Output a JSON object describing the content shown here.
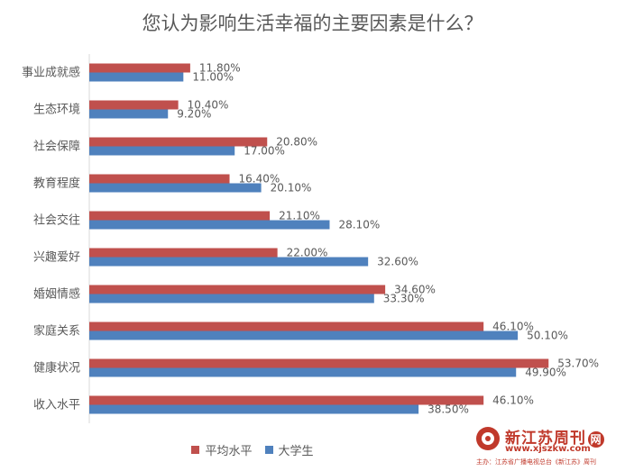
{
  "chart_data": {
    "type": "bar",
    "orientation": "horizontal",
    "title": "您认为影响生活幸福的主要因素是什么？",
    "categories": [
      "事业成就感",
      "生态环境",
      "社会保障",
      "教育程度",
      "社会交往",
      "兴趣爱好",
      "婚姻情感",
      "家庭关系",
      "健康状况",
      "收入水平"
    ],
    "series": [
      {
        "name": "平均水平",
        "color": "#c0504d",
        "values": [
          11.8,
          10.4,
          20.8,
          16.4,
          21.1,
          22.0,
          34.6,
          46.1,
          53.7,
          46.1
        ],
        "labels": [
          "11.80%",
          "10.40%",
          "20.80%",
          "16.40%",
          "21.10%",
          "22.00%",
          "34.60%",
          "46.10%",
          "53.70%",
          "46.10%"
        ]
      },
      {
        "name": "大学生",
        "color": "#4f81bd",
        "values": [
          11.0,
          9.2,
          17.0,
          20.1,
          28.1,
          32.6,
          33.3,
          50.1,
          49.9,
          38.5
        ],
        "labels": [
          "11.00%",
          "9.20%",
          "17.00%",
          "20.10%",
          "28.10%",
          "32.60%",
          "33.30%",
          "50.10%",
          "49.90%",
          "38.50%"
        ]
      }
    ],
    "xlim": [
      0,
      60
    ],
    "grid": false,
    "legend_position": "bottom"
  },
  "watermark": {
    "name": "新江苏周刊",
    "badge": "网",
    "url": "www.xjszkw.com",
    "caption": "主办：江苏省广播电视总台《新江苏》周刊"
  }
}
